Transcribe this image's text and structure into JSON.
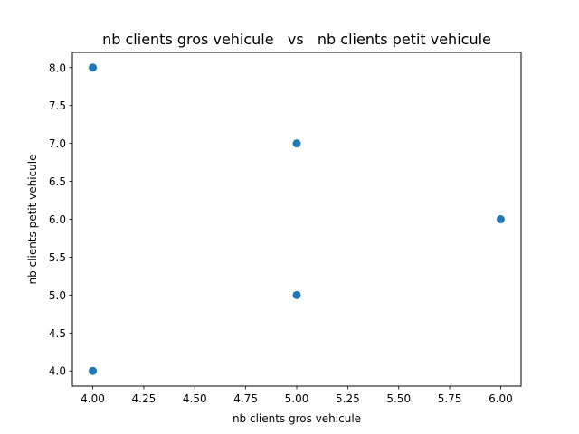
{
  "chart_data": {
    "type": "scatter",
    "title": "nb clients gros vehicule   vs   nb clients petit vehicule",
    "xlabel": "nb clients gros vehicule",
    "ylabel": "nb clients petit vehicule",
    "xlim": [
      3.9,
      6.1
    ],
    "ylim": [
      3.8,
      8.2
    ],
    "xticks": [
      4.0,
      4.25,
      4.5,
      4.75,
      5.0,
      5.25,
      5.5,
      5.75,
      6.0
    ],
    "xtick_labels": [
      "4.00",
      "4.25",
      "4.50",
      "4.75",
      "5.00",
      "5.25",
      "5.50",
      "5.75",
      "6.00"
    ],
    "yticks": [
      4.0,
      4.5,
      5.0,
      5.5,
      6.0,
      6.5,
      7.0,
      7.5,
      8.0
    ],
    "ytick_labels": [
      "4.0",
      "4.5",
      "5.0",
      "5.5",
      "6.0",
      "6.5",
      "7.0",
      "7.5",
      "8.0"
    ],
    "grid": false,
    "point_color": "#1f77b4",
    "points": [
      {
        "x": 4,
        "y": 8
      },
      {
        "x": 5,
        "y": 7
      },
      {
        "x": 6,
        "y": 6
      },
      {
        "x": 5,
        "y": 5
      },
      {
        "x": 4,
        "y": 4
      }
    ]
  }
}
